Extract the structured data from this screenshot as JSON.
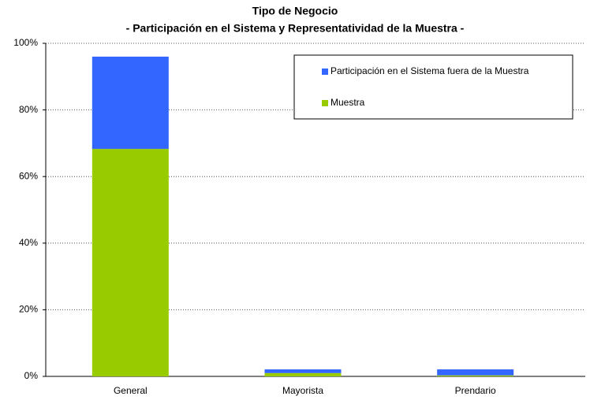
{
  "chart_data": {
    "type": "stacked_bar",
    "title": "Tipo de Negocio",
    "subtitle": "- Participación en el Sistema y Representatividad de la Muestra -",
    "categories": [
      "General",
      "Mayorista",
      "Prendario"
    ],
    "series": [
      {
        "name": "Participación en el Sistema fuera de la Muestra",
        "color": "#3366ff",
        "values": [
          27.7,
          1.1,
          1.8
        ]
      },
      {
        "name": "Muestra",
        "color": "#99cc00",
        "values": [
          68.3,
          1.0,
          0.3
        ]
      }
    ],
    "ylim": [
      0,
      100
    ],
    "yticks": [
      {
        "value": 0,
        "label": "0%"
      },
      {
        "value": 20,
        "label": "20%"
      },
      {
        "value": 40,
        "label": "40%"
      },
      {
        "value": 60,
        "label": "60%"
      },
      {
        "value": 80,
        "label": "80%"
      },
      {
        "value": 100,
        "label": "100%"
      }
    ],
    "grid": true,
    "legend": "top-right"
  }
}
